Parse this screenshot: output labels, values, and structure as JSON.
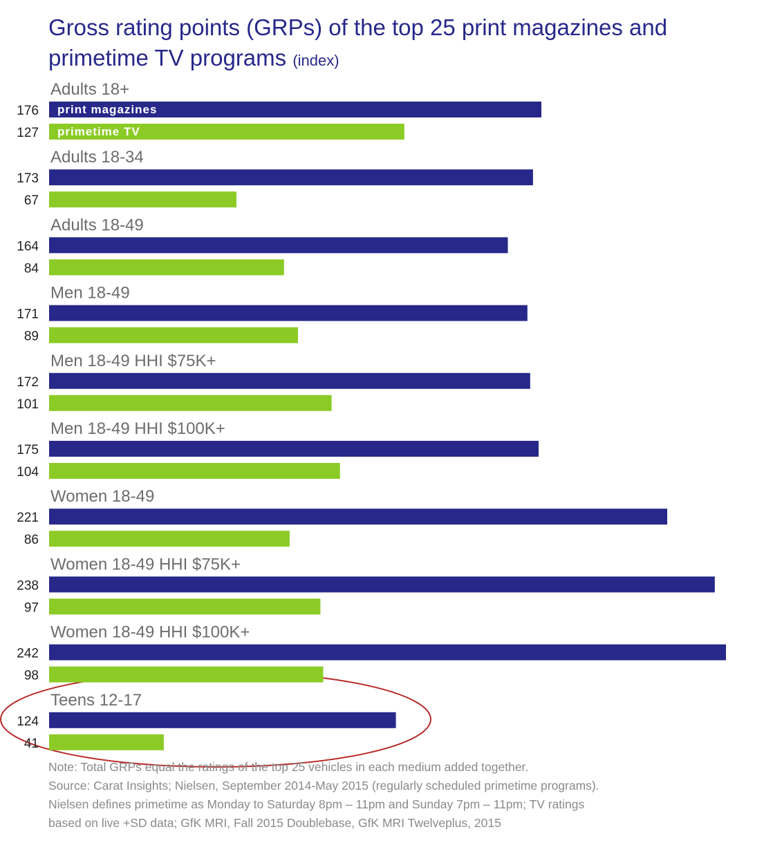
{
  "title": {
    "main": "Gross rating points (GRPs) of the top 25 print magazines and primetime TV programs",
    "suffix": "(index)"
  },
  "colors": {
    "print": "#27288a",
    "tv": "#8ccb26",
    "group_label": "#6d6d6d",
    "value_label": "#222222",
    "highlight_ellipse": "#b82a2a"
  },
  "chart_data": {
    "type": "bar",
    "orientation": "horizontal",
    "categories": [
      "Adults 18+",
      "Adults 18-34",
      "Adults 18-49",
      "Men 18-49",
      "Men 18-49 HHI $75K+",
      "Men 18-49 HHI $100K+",
      "Women 18-49",
      "Women 18-49 HHI $75K+",
      "Women 18-49 HHI $100K+",
      "Teens 12-17"
    ],
    "series": [
      {
        "name": "print magazines",
        "values": [
          176,
          173,
          164,
          171,
          172,
          175,
          221,
          238,
          242,
          124
        ]
      },
      {
        "name": "primetime TV",
        "values": [
          127,
          67,
          84,
          89,
          101,
          104,
          86,
          97,
          98,
          41
        ]
      }
    ],
    "xlim": [
      0,
      242
    ],
    "grid": false,
    "legend": "inside first bars",
    "highlighted_category": "Teens 12-17"
  },
  "notes": [
    "Note: Total GRPs equal the ratings of the top 25 vehicles in each medium added together.",
    "Source: Carat Insights; Nielsen, September 2014-May 2015 (regularly scheduled primetime programs).",
    "Nielsen defines primetime as Monday to Saturday 8pm – 11pm and Sunday 7pm – 11pm; TV ratings",
    "based on live +SD data; GfK MRI, Fall 2015 Doublebase, GfK MRI Twelveplus, 2015"
  ]
}
